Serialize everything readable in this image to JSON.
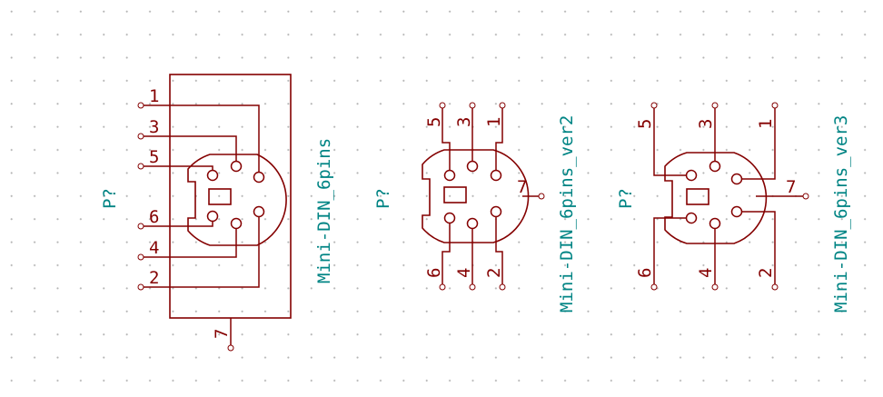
{
  "colors": {
    "symbol": "#840000",
    "field_text": "#008484",
    "grid_dot": "#b4b4b4",
    "background": "#ffffff"
  },
  "symbols": [
    {
      "reference": "P?",
      "value": "Mini-DIN_6pins",
      "pins": {
        "p1": "1",
        "p2": "2",
        "p3": "3",
        "p4": "4",
        "p5": "5",
        "p6": "6",
        "p7": "7"
      }
    },
    {
      "reference": "P?",
      "value": "Mini-DIN_6pins_ver2",
      "pins": {
        "p1": "1",
        "p2": "2",
        "p3": "3",
        "p4": "4",
        "p5": "5",
        "p6": "6",
        "p7": "7"
      }
    },
    {
      "reference": "P?",
      "value": "Mini-DIN_6pins_ver3",
      "pins": {
        "p1": "1",
        "p2": "2",
        "p3": "3",
        "p4": "4",
        "p5": "5",
        "p6": "6",
        "p7": "7"
      }
    }
  ]
}
